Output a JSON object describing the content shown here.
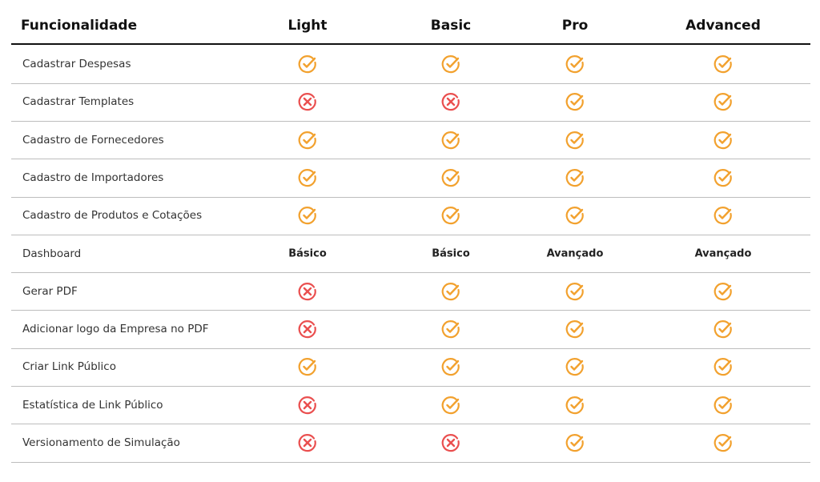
{
  "table": {
    "header": [
      "Funcionalidade",
      "Light",
      "Basic",
      "Pro",
      "Advanced"
    ],
    "rows": [
      [
        "Cadastrar Despesas",
        true,
        true,
        true,
        true
      ],
      [
        "Cadastrar Templates",
        false,
        false,
        true,
        true
      ],
      [
        "Cadastro de Fornecedores",
        true,
        true,
        true,
        true
      ],
      [
        "Cadastro de Importadores",
        true,
        true,
        true,
        true
      ],
      [
        "Cadastro de Produtos e Cotações",
        true,
        true,
        true,
        true
      ],
      [
        "Dashboard",
        "Básico",
        "Básico",
        "Avançado",
        "Avançado"
      ],
      [
        "Gerar PDF",
        false,
        true,
        true,
        true
      ],
      [
        "Adicionar logo da Empresa no PDF",
        false,
        true,
        true,
        true
      ],
      [
        "Criar Link Público",
        true,
        true,
        true,
        true
      ],
      [
        "Estatística de Link Público",
        false,
        true,
        true,
        true
      ],
      [
        "Versionamento de Simulação",
        false,
        false,
        true,
        true
      ]
    ]
  }
}
